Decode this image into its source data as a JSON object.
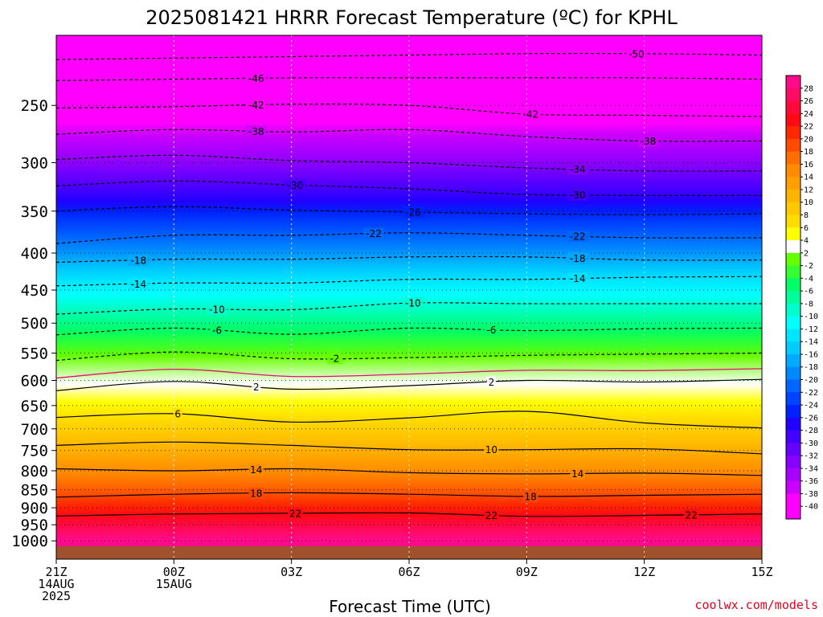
{
  "chart_data": {
    "type": "heatmap",
    "title": "2025081421 HRRR Forecast Temperature (ºC) for KPHL",
    "xlabel": "Forecast Time (UTC)",
    "ylabel": "",
    "credit": "coolwx.com/models",
    "y_scale": "log-pressure",
    "y_range_hpa": [
      1060,
      200
    ],
    "x_range_hours": [
      0,
      18
    ],
    "x_ticks": [
      {
        "hour": 0,
        "lines": [
          "21Z",
          "14AUG",
          "2025"
        ]
      },
      {
        "hour": 3,
        "lines": [
          "00Z",
          "15AUG"
        ]
      },
      {
        "hour": 6,
        "lines": [
          "03Z"
        ]
      },
      {
        "hour": 9,
        "lines": [
          "06Z"
        ]
      },
      {
        "hour": 12,
        "lines": [
          "09Z"
        ]
      },
      {
        "hour": 15,
        "lines": [
          "12Z"
        ]
      },
      {
        "hour": 18,
        "lines": [
          "15Z"
        ]
      }
    ],
    "y_ticks": [
      250,
      300,
      350,
      400,
      450,
      500,
      550,
      600,
      650,
      700,
      750,
      800,
      850,
      900,
      950,
      1000
    ],
    "grid": true,
    "colorbar": {
      "placement": "right",
      "levels": [
        28,
        26,
        24,
        22,
        20,
        18,
        16,
        14,
        12,
        10,
        8,
        6,
        4,
        2,
        -2,
        -4,
        -6,
        -8,
        -10,
        -12,
        -14,
        -16,
        -18,
        -20,
        -22,
        -24,
        -26,
        -28,
        -30,
        -32,
        -34,
        -36,
        -38,
        -40
      ],
      "colors": [
        "#ff0a8c",
        "#ff0a64",
        "#ff0a3c",
        "#ff0a14",
        "#ff2800",
        "#ff4b00",
        "#ff6e00",
        "#ff8c00",
        "#ffa000",
        "#ffb400",
        "#ffc800",
        "#ffdc00",
        "#ffff00",
        "#ffffff",
        "#66ff00",
        "#33ff33",
        "#00ff66",
        "#00ff99",
        "#00ffcc",
        "#00ffff",
        "#00e6ff",
        "#00ccff",
        "#00aaff",
        "#0088ff",
        "#0066ff",
        "#0044ff",
        "#0022ff",
        "#2200ff",
        "#4400ff",
        "#6600ff",
        "#8800ff",
        "#aa00ff",
        "#cc00ff",
        "#ff00ff",
        "#ff00ff"
      ]
    },
    "contours": [
      {
        "value": -50,
        "label": "-50",
        "pressure": [
          216,
          215,
          214,
          213,
          212,
          212,
          213
        ],
        "label_hour": 14.8
      },
      {
        "value": -46,
        "label": "-46",
        "pressure": [
          231,
          230,
          229,
          229,
          229,
          229,
          230
        ],
        "label_hour": 5.1
      },
      {
        "value": -42,
        "label": "-42",
        "pressure": [
          252,
          251,
          249,
          250,
          257,
          258,
          259
        ],
        "label_hour": 5.1
      },
      {
        "value": -42,
        "label": "-42",
        "pressure": [
          252,
          251,
          249,
          250,
          257,
          258,
          259
        ],
        "label_hour": 12.1
      },
      {
        "value": -38,
        "label": "-38",
        "pressure": [
          274,
          270,
          272,
          270,
          276,
          280,
          280
        ],
        "label_hour": 5.1
      },
      {
        "value": -38,
        "label": "-38",
        "pressure": [
          274,
          270,
          272,
          270,
          276,
          280,
          280
        ],
        "label_hour": 15.1
      },
      {
        "value": -34,
        "label": "-34",
        "pressure": [
          297,
          293,
          298,
          300,
          305,
          308,
          308
        ],
        "label_hour": 13.3
      },
      {
        "value": -30,
        "label": "-30",
        "pressure": [
          323,
          318,
          322,
          326,
          332,
          333,
          333
        ],
        "label_hour": 6.1
      },
      {
        "value": -30,
        "label": "-30",
        "pressure": [
          323,
          318,
          322,
          326,
          332,
          333,
          333
        ],
        "label_hour": 13.3
      },
      {
        "value": -26,
        "label": "-26",
        "pressure": [
          350,
          345,
          349,
          351,
          353,
          354,
          353
        ],
        "label_hour": 9.1
      },
      {
        "value": -22,
        "label": "-22",
        "pressure": [
          388,
          378,
          378,
          375,
          378,
          381,
          381
        ],
        "label_hour": 8.1
      },
      {
        "value": -22,
        "label": "-22",
        "pressure": [
          388,
          378,
          378,
          375,
          378,
          381,
          381
        ],
        "label_hour": 13.3
      },
      {
        "value": -18,
        "label": "-18",
        "pressure": [
          412,
          408,
          408,
          405,
          405,
          409,
          409
        ],
        "label_hour": 2.1
      },
      {
        "value": -18,
        "label": "-18",
        "pressure": [
          412,
          408,
          408,
          405,
          405,
          409,
          409
        ],
        "label_hour": 13.3
      },
      {
        "value": -14,
        "label": "-14",
        "pressure": [
          444,
          440,
          440,
          435,
          435,
          432,
          431
        ],
        "label_hour": 2.1
      },
      {
        "value": -14,
        "label": "-14",
        "pressure": [
          444,
          440,
          440,
          435,
          435,
          432,
          431
        ],
        "label_hour": 13.3
      },
      {
        "value": -10,
        "label": "-10",
        "pressure": [
          486,
          478,
          479,
          469,
          470,
          470,
          470
        ],
        "label_hour": 4.1
      },
      {
        "value": -10,
        "label": "-10",
        "pressure": [
          486,
          478,
          479,
          469,
          470,
          470,
          470
        ],
        "label_hour": 9.1
      },
      {
        "value": -6,
        "label": "-6",
        "pressure": [
          519,
          508,
          518,
          508,
          512,
          509,
          508
        ],
        "label_hour": 4.1
      },
      {
        "value": -6,
        "label": "-6",
        "pressure": [
          519,
          508,
          518,
          508,
          512,
          509,
          508
        ],
        "label_hour": 11.1
      },
      {
        "value": -2,
        "label": "-2",
        "pressure": [
          563,
          548,
          560,
          558,
          554,
          552,
          550
        ],
        "label_hour": 7.1
      },
      {
        "value": 2,
        "label": "2",
        "pressure": [
          620,
          602,
          617,
          610,
          600,
          603,
          598
        ],
        "label_hour": 5.1
      },
      {
        "value": 2,
        "label": "2",
        "pressure": [
          620,
          602,
          617,
          610,
          600,
          603,
          598
        ],
        "label_hour": 11.1
      },
      {
        "value": 6,
        "label": "6",
        "pressure": [
          675,
          667,
          685,
          676,
          662,
          687,
          698
        ],
        "label_hour": 3.1
      },
      {
        "value": 10,
        "label": "10",
        "pressure": [
          738,
          730,
          738,
          748,
          748,
          746,
          758
        ],
        "label_hour": 11.1
      },
      {
        "value": 14,
        "label": "14",
        "pressure": [
          795,
          800,
          795,
          805,
          808,
          806,
          812
        ],
        "label_hour": 5.1
      },
      {
        "value": 14,
        "label": "14",
        "pressure": [
          795,
          800,
          795,
          805,
          808,
          806,
          812
        ],
        "label_hour": 13.3
      },
      {
        "value": 18,
        "label": "18",
        "pressure": [
          870,
          862,
          858,
          862,
          868,
          865,
          862
        ],
        "label_hour": 5.1
      },
      {
        "value": 18,
        "label": "18",
        "pressure": [
          870,
          862,
          858,
          862,
          868,
          865,
          862
        ],
        "label_hour": 12.1
      },
      {
        "value": 22,
        "label": "22",
        "pressure": [
          924,
          918,
          916,
          915,
          925,
          922,
          918
        ],
        "label_hour": 6.1
      },
      {
        "value": 22,
        "label": "22",
        "pressure": [
          924,
          918,
          916,
          915,
          925,
          922,
          918
        ],
        "label_hour": 11.1
      },
      {
        "value": 22,
        "label": "22",
        "pressure": [
          924,
          918,
          916,
          915,
          925,
          922,
          918
        ],
        "label_hour": 16.2
      }
    ]
  }
}
